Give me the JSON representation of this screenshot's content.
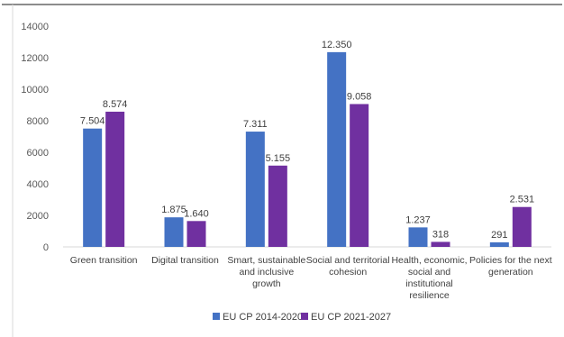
{
  "chart_data": {
    "type": "bar",
    "categories": [
      [
        "Green transition"
      ],
      [
        "Digital transition"
      ],
      [
        "Smart, sustainable",
        "and inclusive",
        "growth"
      ],
      [
        "Social and territorial",
        "cohesion"
      ],
      [
        "Health, economic,",
        "social and",
        "institutional",
        "resilience"
      ],
      [
        "Policies for the next",
        "generation"
      ]
    ],
    "series": [
      {
        "name": "EU CP 2014-2020",
        "color": "#4472C4",
        "values": [
          7504,
          1875,
          7311,
          12350,
          1237,
          291
        ],
        "labels": [
          "7.504",
          "1.875",
          "7.311",
          "12.350",
          "1.237",
          "291"
        ]
      },
      {
        "name": "EU CP 2021-2027",
        "color": "#7030A0",
        "values": [
          8574,
          1640,
          5155,
          9058,
          318,
          2531
        ],
        "labels": [
          "8.574",
          "1.640",
          "5.155",
          "9.058",
          "318",
          "2.531"
        ]
      }
    ],
    "ylim": [
      0,
      14000
    ],
    "yticks": [
      "0",
      "2000",
      "4000",
      "6000",
      "8000",
      "10000",
      "12000",
      "14000"
    ],
    "title": "",
    "xlabel": "",
    "ylabel": "",
    "grid": false,
    "legend_position": "bottom"
  }
}
